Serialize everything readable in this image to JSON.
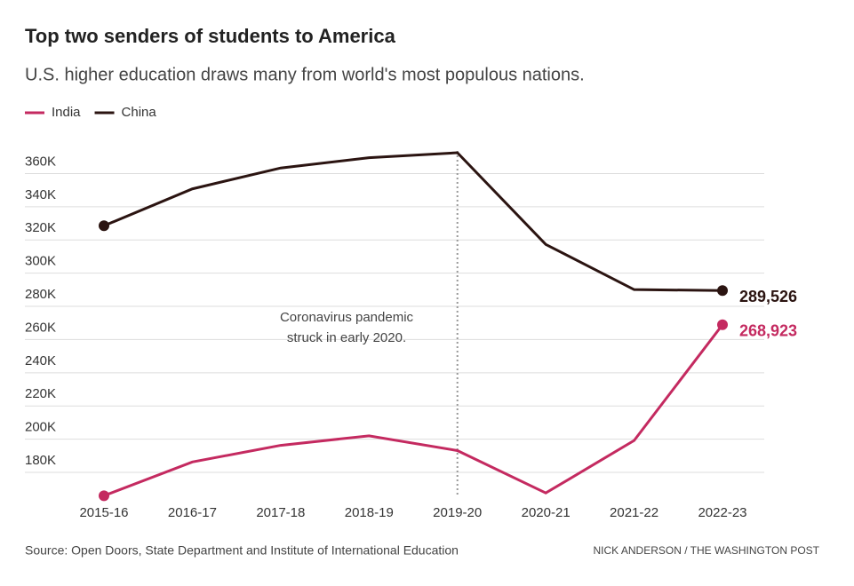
{
  "chart_data": {
    "type": "line",
    "title": "Top two senders of students to America",
    "subtitle": "U.S. higher education draws many from world's most populous nations.",
    "categories": [
      "2015-16",
      "2016-17",
      "2017-18",
      "2018-19",
      "2019-20",
      "2020-21",
      "2021-22",
      "2022-23"
    ],
    "series": [
      {
        "name": "India",
        "color": "#c42a60",
        "values": [
          165918,
          186267,
          196271,
          202014,
          193124,
          167582,
          199182,
          268923
        ],
        "value_labels": [
          null,
          null,
          null,
          null,
          null,
          null,
          null,
          "268,923"
        ]
      },
      {
        "name": "China",
        "color": "#2b1411",
        "values": [
          328547,
          350755,
          363341,
          369548,
          372532,
          317299,
          290086,
          289526
        ],
        "value_labels": [
          null,
          null,
          null,
          null,
          null,
          null,
          null,
          "289,526"
        ]
      }
    ],
    "ylim": [
      160000,
      375000
    ],
    "yticks": [
      {
        "value": 180000,
        "label": "180K"
      },
      {
        "value": 200000,
        "label": "200K"
      },
      {
        "value": 220000,
        "label": "220K"
      },
      {
        "value": 240000,
        "label": "240K"
      },
      {
        "value": 260000,
        "label": "260K"
      },
      {
        "value": 280000,
        "label": "280K"
      },
      {
        "value": 300000,
        "label": "300K"
      },
      {
        "value": 320000,
        "label": "320K"
      },
      {
        "value": 340000,
        "label": "340K"
      },
      {
        "value": 360000,
        "label": "360K"
      }
    ],
    "grid": true,
    "annotation": [
      "Coronavirus pandemic",
      "struck in early 2020."
    ],
    "source": "Source: Open Doors, State Department and Institute of International Education",
    "credit": "NICK ANDERSON / THE WASHINGTON POST"
  }
}
